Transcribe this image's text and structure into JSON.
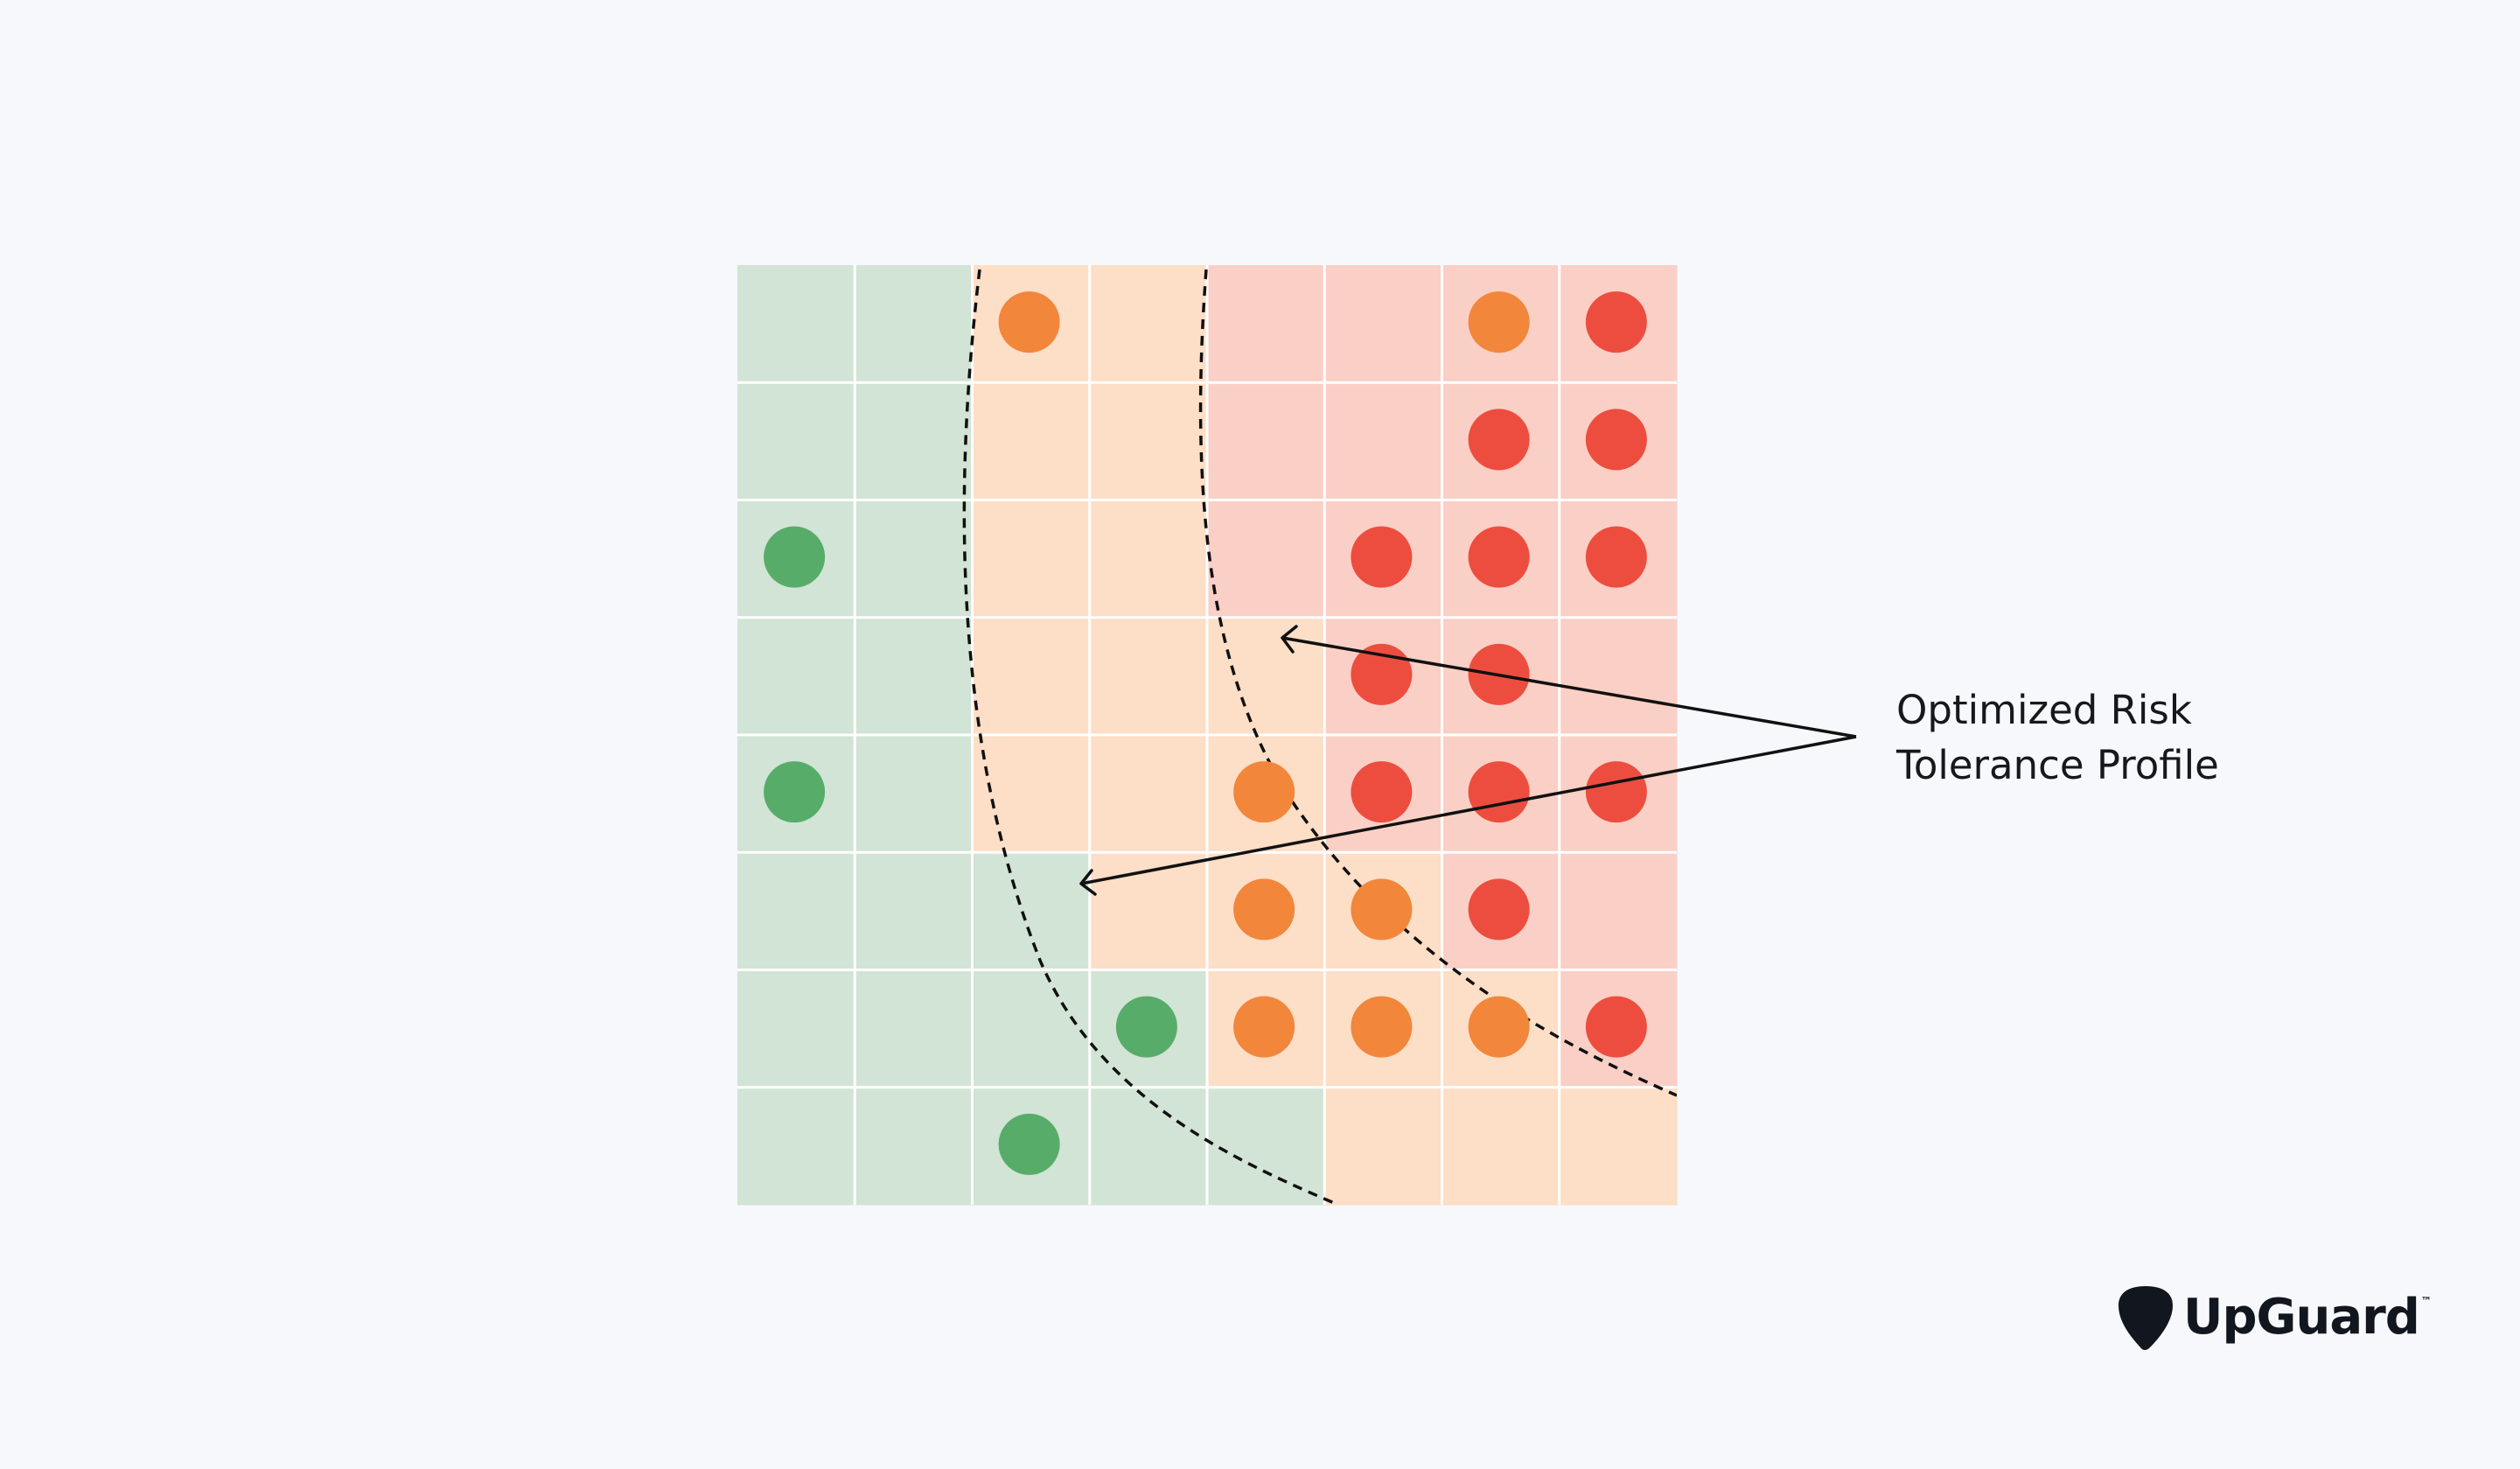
{
  "colors": {
    "background": "#f6f8fc",
    "zone_low": "#d2e4d5",
    "zone_medium": "#fddec6",
    "zone_high": "#facfc5",
    "grid_line": "#ffffff",
    "dot_green": "#58ac6a",
    "dot_orange": "#f2863b",
    "dot_red": "#ed4d3f",
    "text": "#16181d",
    "logo": "#12161e"
  },
  "grid": {
    "rows": 8,
    "cols": 8,
    "cells": [
      [
        "L",
        "L",
        "M",
        "M",
        "H",
        "H",
        "H",
        "H"
      ],
      [
        "L",
        "L",
        "M",
        "M",
        "H",
        "H",
        "H",
        "H"
      ],
      [
        "L",
        "L",
        "M",
        "M",
        "H",
        "H",
        "H",
        "H"
      ],
      [
        "L",
        "L",
        "M",
        "M",
        "M",
        "H",
        "H",
        "H"
      ],
      [
        "L",
        "L",
        "M",
        "M",
        "M",
        "H",
        "H",
        "H"
      ],
      [
        "L",
        "L",
        "L",
        "M",
        "M",
        "M",
        "H",
        "H"
      ],
      [
        "L",
        "L",
        "L",
        "L",
        "M",
        "M",
        "M",
        "H"
      ],
      [
        "L",
        "L",
        "L",
        "L",
        "L",
        "M",
        "M",
        "M"
      ]
    ]
  },
  "dots": [
    {
      "row": 0,
      "col": 2,
      "level": "orange"
    },
    {
      "row": 0,
      "col": 6,
      "level": "orange"
    },
    {
      "row": 0,
      "col": 7,
      "level": "red"
    },
    {
      "row": 1,
      "col": 6,
      "level": "red"
    },
    {
      "row": 1,
      "col": 7,
      "level": "red"
    },
    {
      "row": 2,
      "col": 0,
      "level": "green"
    },
    {
      "row": 2,
      "col": 5,
      "level": "red"
    },
    {
      "row": 2,
      "col": 6,
      "level": "red"
    },
    {
      "row": 2,
      "col": 7,
      "level": "red"
    },
    {
      "row": 3,
      "col": 5,
      "level": "red"
    },
    {
      "row": 3,
      "col": 6,
      "level": "red"
    },
    {
      "row": 4,
      "col": 0,
      "level": "green"
    },
    {
      "row": 4,
      "col": 4,
      "level": "orange"
    },
    {
      "row": 4,
      "col": 5,
      "level": "red"
    },
    {
      "row": 4,
      "col": 6,
      "level": "red"
    },
    {
      "row": 4,
      "col": 7,
      "level": "red"
    },
    {
      "row": 5,
      "col": 4,
      "level": "orange"
    },
    {
      "row": 5,
      "col": 5,
      "level": "orange"
    },
    {
      "row": 5,
      "col": 6,
      "level": "red"
    },
    {
      "row": 6,
      "col": 3,
      "level": "green"
    },
    {
      "row": 6,
      "col": 4,
      "level": "orange"
    },
    {
      "row": 6,
      "col": 5,
      "level": "orange"
    },
    {
      "row": 6,
      "col": 6,
      "level": "orange"
    },
    {
      "row": 6,
      "col": 7,
      "level": "red"
    },
    {
      "row": 7,
      "col": 2,
      "level": "green"
    }
  ],
  "annotation": {
    "line1": "Optimized Risk",
    "line2": "Tolerance Profile"
  },
  "logo": {
    "text": "UpGuard",
    "tm": "™"
  },
  "icons": {
    "logo_mark": "guitar-pick-shield-icon"
  }
}
